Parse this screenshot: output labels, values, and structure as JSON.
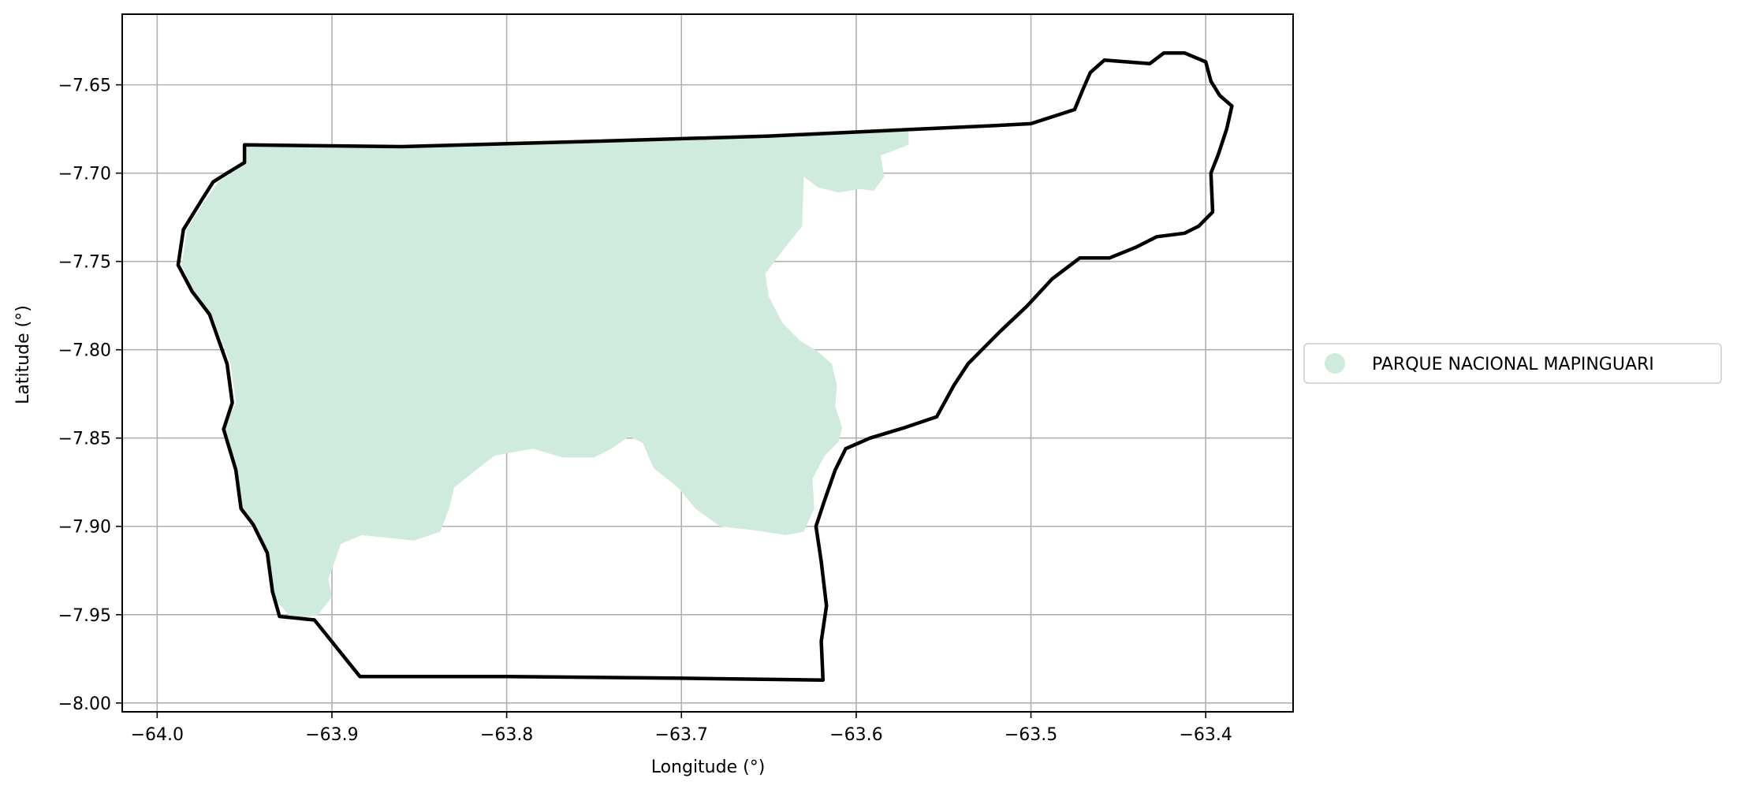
{
  "colors": {
    "park_fill": "#cfebde",
    "boundary": "#000000",
    "grid": "#b0b0b0",
    "legend_border": "#cccccc"
  },
  "chart_data": {
    "type": "map",
    "xlabel": "Longitude (°)",
    "ylabel": "Latitude (°)",
    "xlim": [
      -64.02,
      -63.35
    ],
    "ylim": [
      -8.005,
      -7.61
    ],
    "xticks": [
      -64.0,
      -63.9,
      -63.8,
      -63.7,
      -63.6,
      -63.5,
      -63.4
    ],
    "xtick_labels": [
      "−64.0",
      "−63.9",
      "−63.8",
      "−63.7",
      "−63.6",
      "−63.5",
      "−63.4"
    ],
    "yticks": [
      -7.65,
      -7.7,
      -7.75,
      -7.8,
      -7.85,
      -7.9,
      -7.95,
      -8.0
    ],
    "ytick_labels": [
      "−7.65",
      "−7.70",
      "−7.75",
      "−7.80",
      "−7.85",
      "−7.90",
      "−7.95",
      "−8.00"
    ],
    "grid": true,
    "legend": {
      "placement": "right",
      "entries": [
        {
          "label": "PARQUE NACIONAL MAPINGUARI",
          "color": "#cfebde"
        }
      ]
    },
    "park_polygon": [
      [
        -63.95,
        -7.685
      ],
      [
        -63.86,
        -7.686
      ],
      [
        -63.75,
        -7.682
      ],
      [
        -63.65,
        -7.678
      ],
      [
        -63.57,
        -7.676
      ],
      [
        -63.57,
        -7.684
      ],
      [
        -63.586,
        -7.69
      ],
      [
        -63.584,
        -7.702
      ],
      [
        -63.59,
        -7.71
      ],
      [
        -63.598,
        -7.709
      ],
      [
        -63.61,
        -7.711
      ],
      [
        -63.622,
        -7.708
      ],
      [
        -63.63,
        -7.702
      ],
      [
        -63.631,
        -7.73
      ],
      [
        -63.643,
        -7.745
      ],
      [
        -63.652,
        -7.757
      ],
      [
        -63.65,
        -7.77
      ],
      [
        -63.642,
        -7.785
      ],
      [
        -63.632,
        -7.795
      ],
      [
        -63.622,
        -7.801
      ],
      [
        -63.614,
        -7.808
      ],
      [
        -63.611,
        -7.82
      ],
      [
        -63.612,
        -7.832
      ],
      [
        -63.608,
        -7.844
      ],
      [
        -63.61,
        -7.852
      ],
      [
        -63.618,
        -7.86
      ],
      [
        -63.625,
        -7.873
      ],
      [
        -63.624,
        -7.89
      ],
      [
        -63.63,
        -7.903
      ],
      [
        -63.64,
        -7.905
      ],
      [
        -63.66,
        -7.902
      ],
      [
        -63.678,
        -7.9
      ],
      [
        -63.692,
        -7.89
      ],
      [
        -63.702,
        -7.878
      ],
      [
        -63.716,
        -7.867
      ],
      [
        -63.722,
        -7.853
      ],
      [
        -63.73,
        -7.849
      ],
      [
        -63.74,
        -7.856
      ],
      [
        -63.75,
        -7.861
      ],
      [
        -63.768,
        -7.861
      ],
      [
        -63.785,
        -7.856
      ],
      [
        -63.807,
        -7.86
      ],
      [
        -63.82,
        -7.87
      ],
      [
        -63.83,
        -7.878
      ],
      [
        -63.833,
        -7.89
      ],
      [
        -63.838,
        -7.903
      ],
      [
        -63.853,
        -7.908
      ],
      [
        -63.883,
        -7.905
      ],
      [
        -63.895,
        -7.91
      ],
      [
        -63.902,
        -7.93
      ],
      [
        -63.9,
        -7.94
      ],
      [
        -63.908,
        -7.95
      ],
      [
        -63.922,
        -7.953
      ],
      [
        -63.932,
        -7.942
      ],
      [
        -63.937,
        -7.918
      ],
      [
        -63.944,
        -7.898
      ],
      [
        -63.952,
        -7.892
      ],
      [
        -63.954,
        -7.87
      ],
      [
        -63.962,
        -7.845
      ],
      [
        -63.955,
        -7.83
      ],
      [
        -63.958,
        -7.808
      ],
      [
        -63.968,
        -7.782
      ],
      [
        -63.978,
        -7.77
      ],
      [
        -63.986,
        -7.752
      ],
      [
        -63.983,
        -7.732
      ],
      [
        -63.973,
        -7.716
      ],
      [
        -63.965,
        -7.705
      ],
      [
        -63.95,
        -7.695
      ]
    ],
    "boundary_polygon": [
      [
        -63.95,
        -7.684
      ],
      [
        -63.86,
        -7.685
      ],
      [
        -63.75,
        -7.682
      ],
      [
        -63.65,
        -7.679
      ],
      [
        -63.52,
        -7.673
      ],
      [
        -63.5,
        -7.672
      ],
      [
        -63.475,
        -7.664
      ],
      [
        -63.47,
        -7.652
      ],
      [
        -63.466,
        -7.643
      ],
      [
        -63.458,
        -7.636
      ],
      [
        -63.445,
        -7.637
      ],
      [
        -63.432,
        -7.638
      ],
      [
        -63.424,
        -7.632
      ],
      [
        -63.412,
        -7.632
      ],
      [
        -63.4,
        -7.637
      ],
      [
        -63.397,
        -7.648
      ],
      [
        -63.392,
        -7.656
      ],
      [
        -63.385,
        -7.662
      ],
      [
        -63.388,
        -7.675
      ],
      [
        -63.393,
        -7.69
      ],
      [
        -63.397,
        -7.7
      ],
      [
        -63.396,
        -7.722
      ],
      [
        -63.404,
        -7.73
      ],
      [
        -63.412,
        -7.734
      ],
      [
        -63.428,
        -7.736
      ],
      [
        -63.44,
        -7.742
      ],
      [
        -63.455,
        -7.748
      ],
      [
        -63.472,
        -7.748
      ],
      [
        -63.488,
        -7.76
      ],
      [
        -63.502,
        -7.775
      ],
      [
        -63.518,
        -7.79
      ],
      [
        -63.536,
        -7.808
      ],
      [
        -63.544,
        -7.82
      ],
      [
        -63.554,
        -7.838
      ],
      [
        -63.572,
        -7.844
      ],
      [
        -63.592,
        -7.85
      ],
      [
        -63.606,
        -7.856
      ],
      [
        -63.612,
        -7.868
      ],
      [
        -63.618,
        -7.885
      ],
      [
        -63.623,
        -7.9
      ],
      [
        -63.62,
        -7.92
      ],
      [
        -63.617,
        -7.945
      ],
      [
        -63.62,
        -7.965
      ],
      [
        -63.619,
        -7.987
      ],
      [
        -63.7,
        -7.986
      ],
      [
        -63.8,
        -7.985
      ],
      [
        -63.884,
        -7.985
      ],
      [
        -63.91,
        -7.953
      ],
      [
        -63.93,
        -7.951
      ],
      [
        -63.934,
        -7.937
      ],
      [
        -63.937,
        -7.915
      ],
      [
        -63.945,
        -7.899
      ],
      [
        -63.952,
        -7.89
      ],
      [
        -63.955,
        -7.868
      ],
      [
        -63.962,
        -7.845
      ],
      [
        -63.957,
        -7.83
      ],
      [
        -63.96,
        -7.808
      ],
      [
        -63.97,
        -7.78
      ],
      [
        -63.98,
        -7.767
      ],
      [
        -63.988,
        -7.752
      ],
      [
        -63.985,
        -7.732
      ],
      [
        -63.975,
        -7.716
      ],
      [
        -63.968,
        -7.705
      ],
      [
        -63.96,
        -7.7
      ],
      [
        -63.95,
        -7.694
      ]
    ]
  }
}
